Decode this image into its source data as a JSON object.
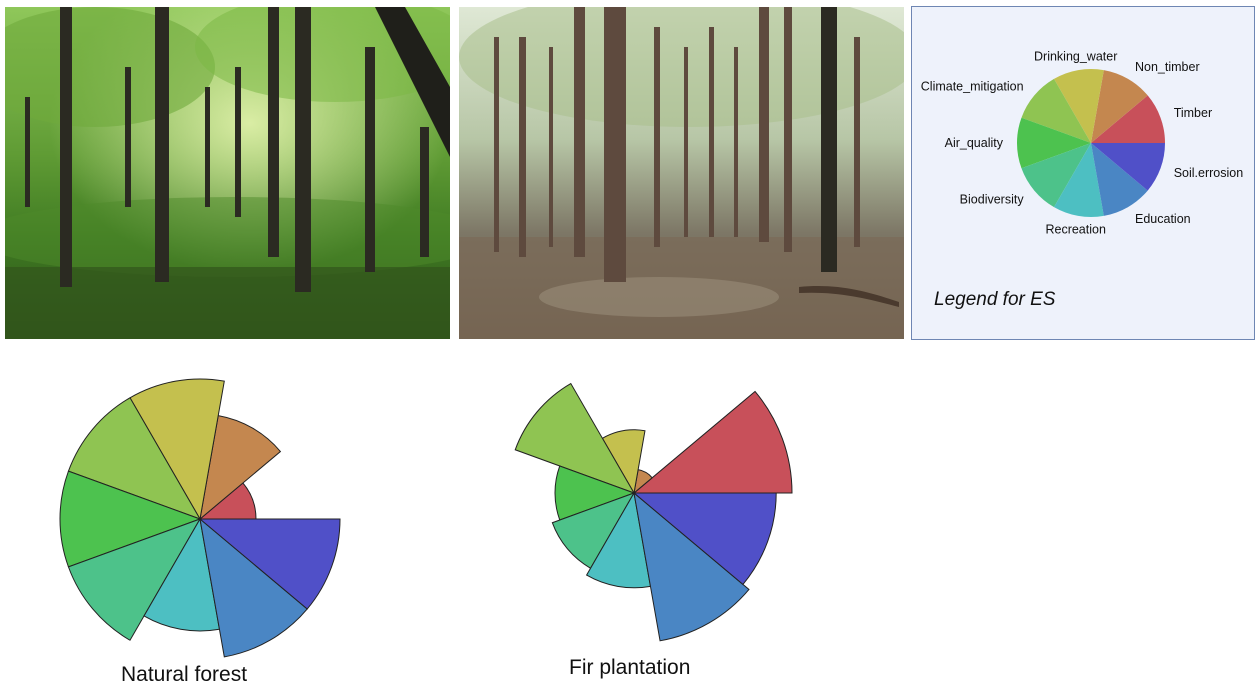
{
  "legend": {
    "title": "Legend for ES",
    "items": [
      {
        "name": "Timber",
        "color": "#c8505a"
      },
      {
        "name": "Non_timber",
        "color": "#c4874f"
      },
      {
        "name": "Drinking_water",
        "color": "#c4c04e"
      },
      {
        "name": "Climate_mitigation",
        "color": "#8fc452"
      },
      {
        "name": "Air_quality",
        "color": "#4dc24f"
      },
      {
        "name": "Biodiversity",
        "color": "#4dc28a"
      },
      {
        "name": "Recreation",
        "color": "#4dbfc2"
      },
      {
        "name": "Education",
        "color": "#4a86c4"
      },
      {
        "name": "Soil.errosion",
        "color": "#5050c8"
      }
    ]
  },
  "photos": [
    {
      "name": "natural-forest-photo"
    },
    {
      "name": "fir-plantation-photo"
    }
  ],
  "chart_data": [
    {
      "type": "pie",
      "subtype": "rose",
      "caption": "Natural forest",
      "categories": [
        "Timber",
        "Non_timber",
        "Drinking_water",
        "Climate_mitigation",
        "Air_quality",
        "Biodiversity",
        "Recreation",
        "Education",
        "Soil.errosion"
      ],
      "values": [
        0.4,
        0.75,
        1.0,
        1.0,
        1.0,
        1.0,
        0.8,
        1.0,
        1.0
      ]
    },
    {
      "type": "pie",
      "subtype": "rose",
      "caption": "Fir plantation",
      "categories": [
        "Timber",
        "Non_timber",
        "Drinking_water",
        "Climate_mitigation",
        "Air_quality",
        "Biodiversity",
        "Recreation",
        "Education",
        "Soil.errosion"
      ],
      "values": [
        1.0,
        0.15,
        0.4,
        0.8,
        0.5,
        0.55,
        0.6,
        0.95,
        0.9
      ]
    }
  ]
}
